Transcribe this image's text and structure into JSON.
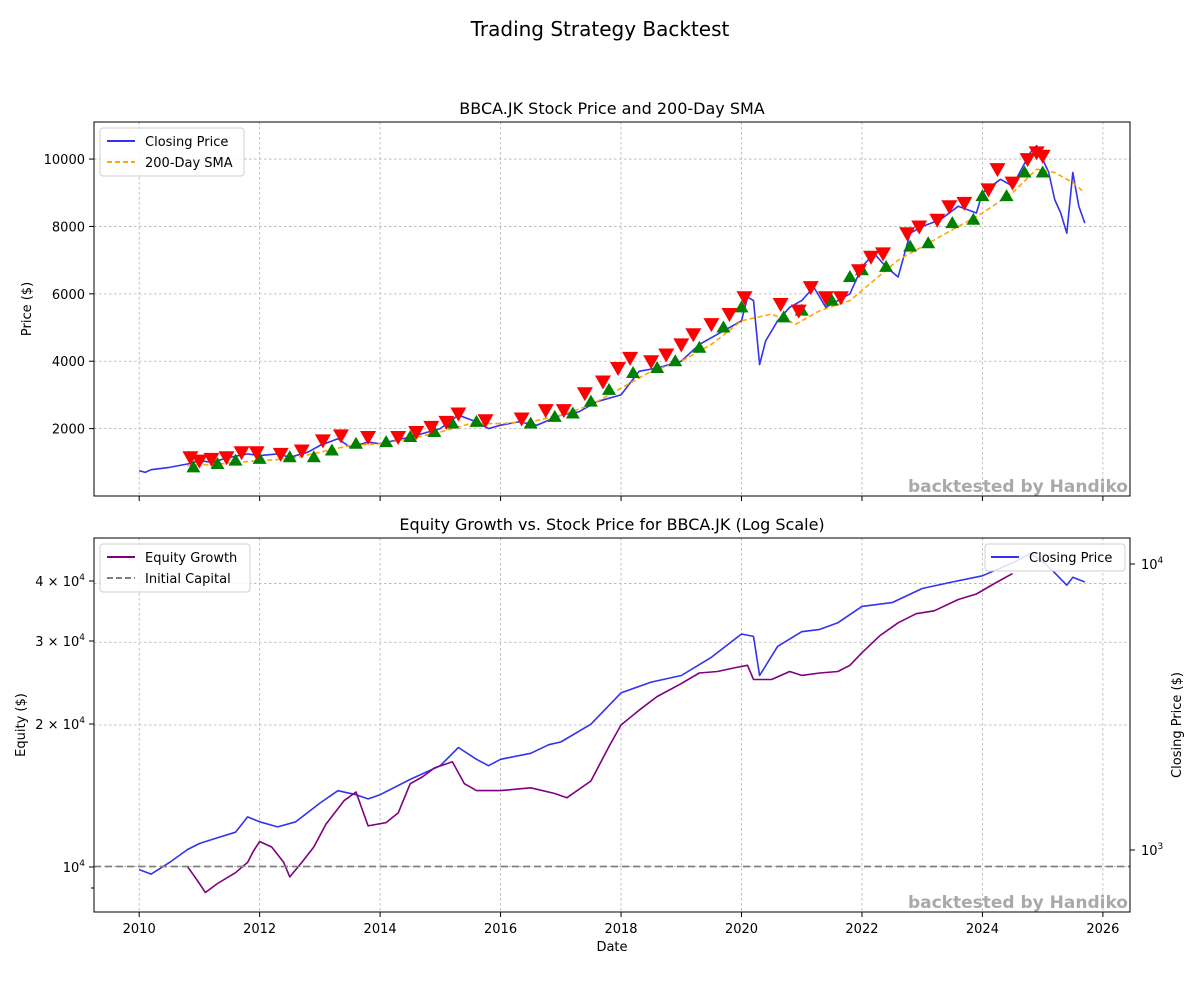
{
  "figure_title": "Trading Strategy Backtest",
  "watermark": "backtested by Handiko",
  "colors": {
    "closing_price": "#3333ee",
    "sma": "#ffa500",
    "buy_marker": "#008000",
    "sell_marker": "#ff0000",
    "equity": "#800080",
    "initial_capital": "#808080"
  },
  "chart_data": [
    {
      "type": "line",
      "title": "BBCA.JK Stock Price and 200-Day SMA",
      "xlabel": "",
      "ylabel": "Price ($)",
      "xlim": [
        2009.25,
        2026.45
      ],
      "ylim": [
        0,
        11100
      ],
      "x_ticks": [
        2010,
        2012,
        2014,
        2016,
        2018,
        2020,
        2022,
        2024,
        2026
      ],
      "y_ticks": [
        2000,
        4000,
        6000,
        8000,
        10000
      ],
      "grid": true,
      "legend_position": "upper left",
      "series": [
        {
          "name": "Closing Price",
          "style": "solid",
          "x": [
            2010.0,
            2010.1,
            2010.2,
            2010.5,
            2010.8,
            2011.0,
            2011.2,
            2011.5,
            2011.8,
            2012.0,
            2012.3,
            2012.5,
            2012.8,
            2013.0,
            2013.3,
            2013.5,
            2013.8,
            2014.0,
            2014.5,
            2015.0,
            2015.3,
            2015.6,
            2015.8,
            2016.0,
            2016.3,
            2016.6,
            2017.0,
            2017.3,
            2017.6,
            2018.0,
            2018.3,
            2018.6,
            2019.0,
            2019.3,
            2019.6,
            2020.0,
            2020.1,
            2020.2,
            2020.3,
            2020.4,
            2020.6,
            2020.8,
            2021.0,
            2021.2,
            2021.4,
            2021.6,
            2021.8,
            2022.0,
            2022.2,
            2022.4,
            2022.6,
            2022.8,
            2023.0,
            2023.3,
            2023.6,
            2023.9,
            2024.0,
            2024.3,
            2024.5,
            2024.8,
            2024.9,
            2025.0,
            2025.1,
            2025.2,
            2025.3,
            2025.4,
            2025.5,
            2025.6,
            2025.7
          ],
          "y": [
            750,
            700,
            780,
            850,
            950,
            1050,
            1000,
            1150,
            1250,
            1200,
            1250,
            1150,
            1300,
            1500,
            1700,
            1450,
            1600,
            1550,
            1750,
            2000,
            2400,
            2200,
            2000,
            2100,
            2200,
            2100,
            2400,
            2500,
            2800,
            3000,
            3700,
            3800,
            4000,
            4500,
            4800,
            5200,
            5900,
            5800,
            3900,
            4600,
            5200,
            5600,
            5800,
            6200,
            5600,
            5800,
            6000,
            6800,
            7200,
            6800,
            6500,
            7800,
            8000,
            8200,
            8600,
            8400,
            9000,
            9400,
            9200,
            10200,
            10400,
            10000,
            9600,
            8800,
            8400,
            7800,
            9600,
            8600,
            8100
          ]
        },
        {
          "name": "200-Day SMA",
          "style": "dashed",
          "x": [
            2010.8,
            2011.3,
            2012.0,
            2012.5,
            2013.0,
            2013.5,
            2014.0,
            2014.5,
            2015.0,
            2015.5,
            2016.0,
            2016.5,
            2017.0,
            2017.5,
            2018.0,
            2018.5,
            2019.0,
            2019.5,
            2020.0,
            2020.5,
            2020.9,
            2021.3,
            2021.8,
            2022.2,
            2022.6,
            2023.0,
            2023.5,
            2024.0,
            2024.5,
            2024.9,
            2025.2,
            2025.5,
            2025.7
          ],
          "y": [
            900,
            950,
            1050,
            1100,
            1300,
            1500,
            1550,
            1700,
            1900,
            2150,
            2150,
            2200,
            2400,
            2700,
            3200,
            3700,
            4000,
            4500,
            5200,
            5400,
            5100,
            5500,
            5800,
            6400,
            7000,
            7400,
            7900,
            8400,
            9000,
            9700,
            9600,
            9300,
            9000
          ]
        },
        {
          "name": "",
          "marker": "sell",
          "x": [
            2010.85,
            2011.0,
            2011.2,
            2011.45,
            2011.7,
            2011.95,
            2012.35,
            2012.7,
            2013.05,
            2013.35,
            2013.8,
            2014.3,
            2014.6,
            2014.85,
            2015.1,
            2015.3,
            2015.75,
            2016.35,
            2016.75,
            2017.05,
            2017.4,
            2017.7,
            2017.95,
            2018.15,
            2018.5,
            2018.75,
            2019.0,
            2019.2,
            2019.5,
            2019.8,
            2020.05,
            2020.65,
            2020.95,
            2021.15,
            2021.4,
            2021.65,
            2021.95,
            2022.15,
            2022.35,
            2022.75,
            2022.95,
            2023.25,
            2023.45,
            2023.7,
            2024.1,
            2024.25,
            2024.5,
            2024.75,
            2024.9,
            2025.0
          ],
          "y": [
            1150,
            1050,
            1100,
            1150,
            1300,
            1300,
            1250,
            1350,
            1650,
            1800,
            1750,
            1750,
            1900,
            2050,
            2200,
            2450,
            2250,
            2300,
            2550,
            2550,
            3050,
            3400,
            3800,
            4100,
            4000,
            4200,
            4500,
            4800,
            5100,
            5400,
            5900,
            5700,
            5500,
            6200,
            5900,
            5900,
            6700,
            7100,
            7200,
            7800,
            8000,
            8200,
            8600,
            8700,
            9100,
            9700,
            9300,
            10000,
            10200,
            10100
          ]
        },
        {
          "name": "",
          "marker": "buy",
          "x": [
            2010.9,
            2011.3,
            2011.6,
            2012.0,
            2012.5,
            2012.9,
            2013.2,
            2013.6,
            2014.1,
            2014.5,
            2014.9,
            2015.2,
            2015.6,
            2016.5,
            2016.9,
            2017.2,
            2017.5,
            2017.8,
            2018.2,
            2018.6,
            2018.9,
            2019.3,
            2019.7,
            2020.0,
            2020.7,
            2021.0,
            2021.5,
            2021.8,
            2022.0,
            2022.4,
            2022.8,
            2023.1,
            2023.5,
            2023.85,
            2024.0,
            2024.4,
            2024.7,
            2025.0
          ],
          "y": [
            850,
            950,
            1050,
            1100,
            1150,
            1150,
            1350,
            1550,
            1600,
            1750,
            1900,
            2150,
            2200,
            2150,
            2350,
            2450,
            2800,
            3150,
            3650,
            3800,
            4000,
            4400,
            5000,
            5600,
            5300,
            5500,
            5800,
            6500,
            6700,
            6800,
            7400,
            7500,
            8100,
            8200,
            8900,
            8900,
            9600,
            9600
          ]
        }
      ]
    },
    {
      "type": "line",
      "title": "Equity Growth vs. Stock Price for BBCA.JK (Log Scale)",
      "xlabel": "Date",
      "ylabel": "Equity ($)",
      "y2label": "Closing Price ($)",
      "yscale": "log",
      "y2scale": "log",
      "xlim": [
        2009.25,
        2026.45
      ],
      "ylim": [
        8000,
        50000
      ],
      "y2lim": [
        650,
        11500
      ],
      "x_ticks": [
        2010,
        2012,
        2014,
        2016,
        2018,
        2020,
        2022,
        2024,
        2026
      ],
      "y_ticks": [
        "10^4",
        "2×10^4",
        "3×10^4",
        "4×10^4"
      ],
      "y2_ticks": [
        "10^3",
        "10^4"
      ],
      "grid": true,
      "legend_position": "upper left",
      "legend2_position": "upper right",
      "series": [
        {
          "name": "Equity Growth",
          "axis": "left",
          "x": [
            2010.8,
            2010.9,
            2011.0,
            2011.1,
            2011.3,
            2011.6,
            2011.8,
            2011.9,
            2012.0,
            2012.2,
            2012.4,
            2012.5,
            2012.7,
            2012.9,
            2013.1,
            2013.4,
            2013.6,
            2013.8,
            2014.1,
            2014.3,
            2014.5,
            2014.7,
            2014.9,
            2015.2,
            2015.4,
            2015.6,
            2016.0,
            2016.5,
            2016.9,
            2017.1,
            2017.5,
            2017.8,
            2018.0,
            2018.3,
            2018.6,
            2019.0,
            2019.3,
            2019.6,
            2019.9,
            2020.1,
            2020.2,
            2020.5,
            2020.8,
            2021.0,
            2021.3,
            2021.6,
            2021.8,
            2022.0,
            2022.3,
            2022.6,
            2022.9,
            2023.2,
            2023.6,
            2023.9,
            2024.2,
            2024.5
          ],
          "y": [
            10000,
            9600,
            9200,
            8800,
            9200,
            9700,
            10200,
            10800,
            11300,
            11000,
            10200,
            9500,
            10200,
            11000,
            12300,
            13800,
            14400,
            12200,
            12400,
            13000,
            15000,
            15500,
            16200,
            16700,
            15000,
            14500,
            14500,
            14700,
            14300,
            14000,
            15200,
            18000,
            20000,
            21500,
            23000,
            24500,
            25800,
            26000,
            26500,
            26800,
            25000,
            25000,
            26000,
            25500,
            25800,
            26000,
            26800,
            28500,
            31000,
            33000,
            34500,
            35000,
            37000,
            38000,
            40000,
            42000
          ]
        },
        {
          "name": "Initial Capital",
          "axis": "left",
          "style": "dashed",
          "x": [
            2009.25,
            2026.45
          ],
          "y": [
            10000,
            10000
          ]
        },
        {
          "name": "Closing Price",
          "axis": "right",
          "x": [
            2010.0,
            2010.2,
            2010.5,
            2010.8,
            2011.0,
            2011.3,
            2011.6,
            2011.8,
            2012.0,
            2012.3,
            2012.6,
            2013.0,
            2013.3,
            2013.6,
            2013.8,
            2014.0,
            2014.5,
            2015.0,
            2015.3,
            2015.6,
            2015.8,
            2016.0,
            2016.5,
            2016.8,
            2017.0,
            2017.5,
            2018.0,
            2018.5,
            2019.0,
            2019.5,
            2020.0,
            2020.2,
            2020.3,
            2020.6,
            2021.0,
            2021.3,
            2021.6,
            2022.0,
            2022.5,
            2023.0,
            2023.5,
            2024.0,
            2024.5,
            2024.8,
            2025.0,
            2025.2,
            2025.4,
            2025.5,
            2025.7
          ],
          "y": [
            900,
            870,
            950,
            1050,
            1100,
            1150,
            1200,
            1350,
            1300,
            1250,
            1300,
            1500,
            1650,
            1600,
            1550,
            1600,
            1800,
            2000,
            2300,
            2100,
            2000,
            2100,
            2200,
            2350,
            2400,
            2750,
            3500,
            3800,
            4000,
            4600,
            5500,
            5400,
            4000,
            5000,
            5600,
            5700,
            6000,
            6800,
            7000,
            7800,
            8200,
            8600,
            9500,
            10200,
            9600,
            8800,
            8000,
            8500,
            8200
          ]
        }
      ]
    }
  ]
}
